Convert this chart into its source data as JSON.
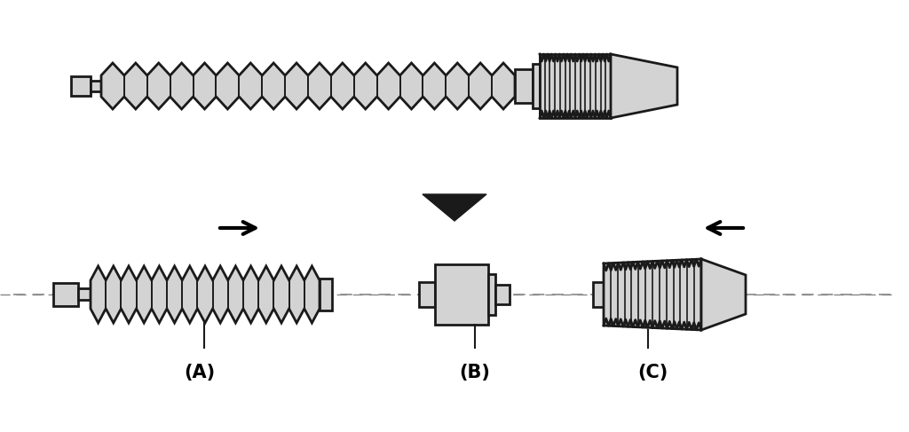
{
  "bg_color": "#ffffff",
  "fill_color": "#d3d3d3",
  "stroke_color": "#1a1a1a",
  "stroke_width": 2.0,
  "label_A": "(A)",
  "label_B": "(B)",
  "label_C": "(C)",
  "label_fontsize": 15,
  "label_fontweight": "bold",
  "arrow_color": "#1a1a1a"
}
